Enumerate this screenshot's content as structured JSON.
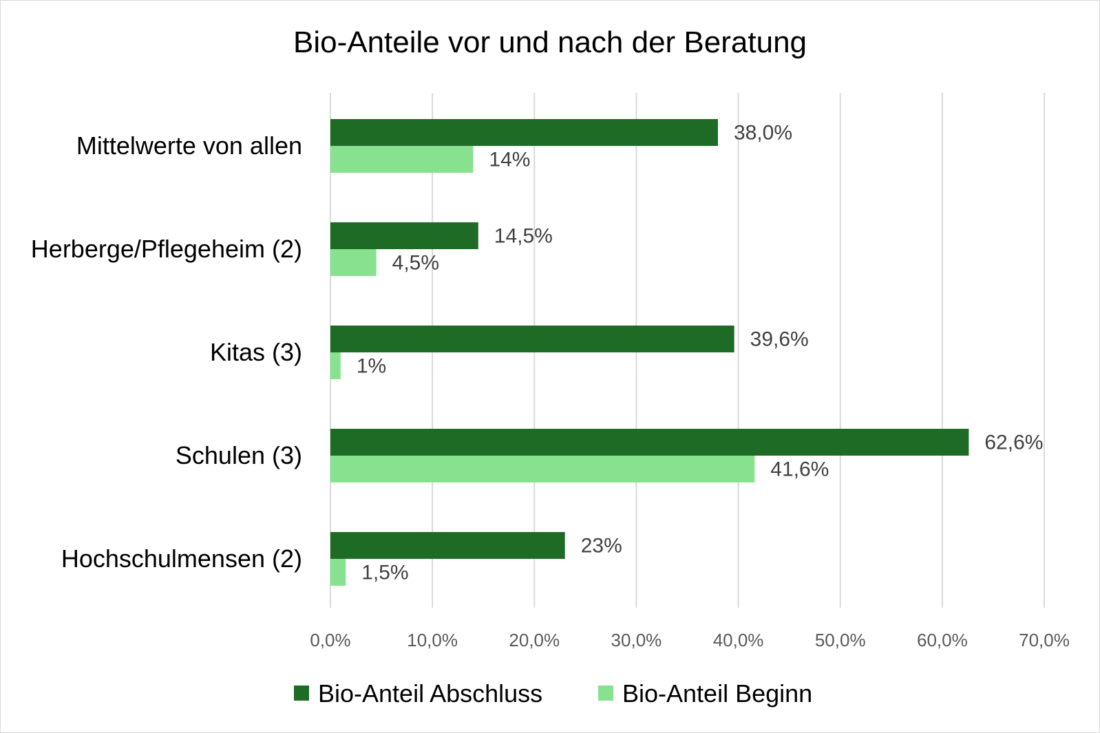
{
  "chart_data": {
    "type": "bar",
    "orientation": "horizontal",
    "title": "Bio-Anteile vor und nach der Beratung",
    "categories": [
      "Mittelwerte von allen",
      "Herberge/Pflegeheim (2)",
      "Kitas (3)",
      "Schulen (3)",
      "Hochschulmensen (2)"
    ],
    "series": [
      {
        "name": "Bio-Anteil Abschluss",
        "color": "#1e6b25",
        "values": [
          38.0,
          14.5,
          39.6,
          62.6,
          23.0
        ],
        "labels": [
          "38,0%",
          "14,5%",
          "39,6%",
          "62,6%",
          "23%"
        ]
      },
      {
        "name": "Bio-Anteil Beginn",
        "color": "#87e18f",
        "values": [
          14.0,
          4.5,
          1.0,
          41.6,
          1.5
        ],
        "labels": [
          "14%",
          "4,5%",
          "1%",
          "41,6%",
          "1,5%"
        ]
      }
    ],
    "xlim": [
      0,
      70
    ],
    "xticks": [
      0,
      10,
      20,
      30,
      40,
      50,
      60,
      70
    ],
    "xtick_labels": [
      "0,0%",
      "10,0%",
      "20,0%",
      "30,0%",
      "40,0%",
      "50,0%",
      "60,0%",
      "70,0%"
    ],
    "grid": true,
    "legend_position": "bottom"
  }
}
